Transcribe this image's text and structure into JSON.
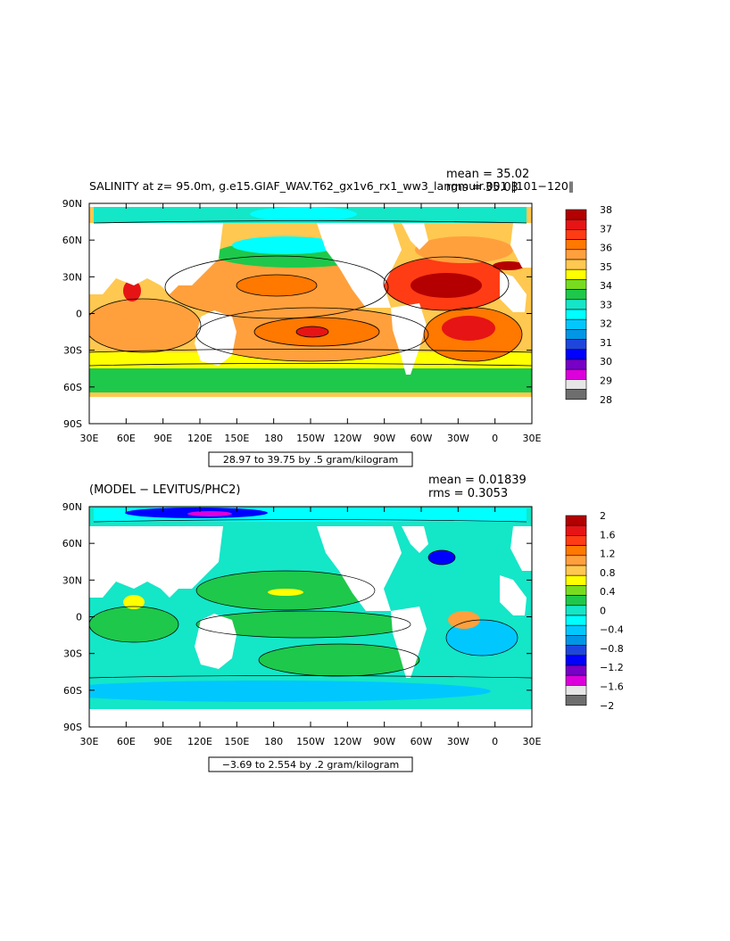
{
  "chart_data": [
    {
      "type": "heatmap",
      "title": "SALINITY at z=  95.0m, g.e15.GIAF_WAV.T62_gx1v6_rx1_ww3_langmuir.001 ‖101−120‖",
      "stats": {
        "mean": "mean = 35.02",
        "rms": "rms = 35.03"
      },
      "contour_info": "28.97 to 39.75 by .5 gram/kilogram",
      "x_ticks": [
        "30E",
        "60E",
        "90E",
        "120E",
        "150E",
        "180",
        "150W",
        "120W",
        "90W",
        "60W",
        "30W",
        "0",
        "30E"
      ],
      "y_ticks": [
        "90N",
        "60N",
        "30N",
        "0",
        "30S",
        "60S",
        "90S"
      ],
      "xlim": [
        30,
        390
      ],
      "ylim": [
        -90,
        90
      ],
      "colorbar": {
        "labels": [
          "38",
          "37",
          "36",
          "35",
          "34",
          "33",
          "32",
          "31",
          "30",
          "29",
          "28"
        ],
        "colors": [
          "#b40000",
          "#e61414",
          "#ff3c14",
          "#ff7800",
          "#ffa03c",
          "#ffc850",
          "#ffff00",
          "#78dc1e",
          "#1ec84b",
          "#14e6c8",
          "#00ffff",
          "#00c8ff",
          "#0096e6",
          "#1e46dc",
          "#0000ff",
          "#7800c8",
          "#dc00dc",
          "#e6e6e6",
          "#6e6e6e"
        ]
      },
      "fields": {
        "equatorial": 35.0,
        "subtropical_gyres": 35.8,
        "south_pacific_max": 36.8,
        "north_atlantic_max": 37.2,
        "south_atlantic_max": 37.0,
        "southern_ocean": 34.0,
        "arctic": 32.0
      }
    },
    {
      "type": "heatmap",
      "title": "(MODEL − LEVITUS/PHC2)",
      "stats": {
        "mean": "mean = 0.01839",
        "rms": "rms = 0.3053"
      },
      "contour_info": "−3.69 to 2.554 by .2 gram/kilogram",
      "x_ticks": [
        "30E",
        "60E",
        "90E",
        "120E",
        "150E",
        "180",
        "150W",
        "120W",
        "90W",
        "60W",
        "30W",
        "0",
        "30E"
      ],
      "y_ticks": [
        "90N",
        "60N",
        "30N",
        "0",
        "30S",
        "60S",
        "90S"
      ],
      "xlim": [
        30,
        390
      ],
      "ylim": [
        -90,
        90
      ],
      "colorbar": {
        "labels": [
          "2",
          "1.6",
          "1.2",
          "0.8",
          "0.4",
          "0",
          "−0.4",
          "−0.8",
          "−1.2",
          "−1.6",
          "−2"
        ],
        "colors": [
          "#b40000",
          "#e61414",
          "#ff3c14",
          "#ff7800",
          "#ffa03c",
          "#ffc850",
          "#ffff00",
          "#78dc1e",
          "#1ec84b",
          "#14e6c8",
          "#00ffff",
          "#00c8ff",
          "#0096e6",
          "#1e46dc",
          "#0000ff",
          "#7800c8",
          "#dc00dc",
          "#e6e6e6",
          "#6e6e6e"
        ]
      },
      "fields": {
        "general": 0.0,
        "north_pacific_positive": 0.5,
        "arctic_negative": -1.6,
        "gulf_stream_negative": -1.2,
        "equatorial_band": 0.1
      }
    }
  ]
}
